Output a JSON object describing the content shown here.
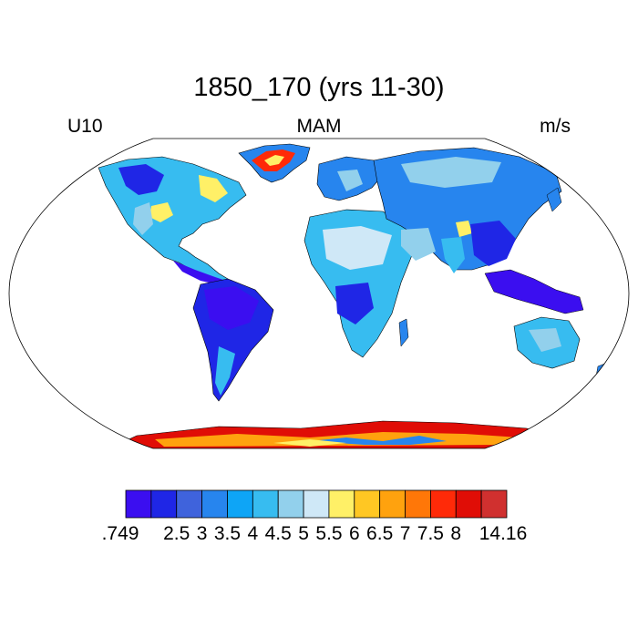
{
  "title": "1850_170 (yrs 11-30)",
  "left_string": "U10",
  "center_string": "MAM",
  "right_string": "m/s",
  "colorbar": {
    "colors": [
      "#3b0ef0",
      "#1f26e6",
      "#3f63dc",
      "#2785ee",
      "#0ea5f6",
      "#37bcf0",
      "#92d0ec",
      "#cfe8f7",
      "#fff067",
      "#ffc723",
      "#ffa20e",
      "#ff7708",
      "#ff2a08",
      "#e00d06",
      "#d0302f"
    ],
    "labels": [
      ".749",
      "2.5",
      "3",
      "3.5",
      "4",
      "4.5",
      "5",
      "5.5",
      "6",
      "6.5",
      "7",
      "7.5",
      "8",
      "14.16"
    ]
  },
  "map": {
    "projection": "Robinson",
    "colors": {
      "very_low": "#3b0ef0",
      "low": "#1f26e6",
      "low_mid": "#2785ee",
      "mid": "#37bcf0",
      "mid_light": "#92d0ec",
      "light": "#cfe8f7",
      "yellow": "#fff067",
      "orange": "#ffa20e",
      "red": "#ff2a08",
      "dark_red": "#e00d06",
      "coast": "#000000"
    }
  }
}
